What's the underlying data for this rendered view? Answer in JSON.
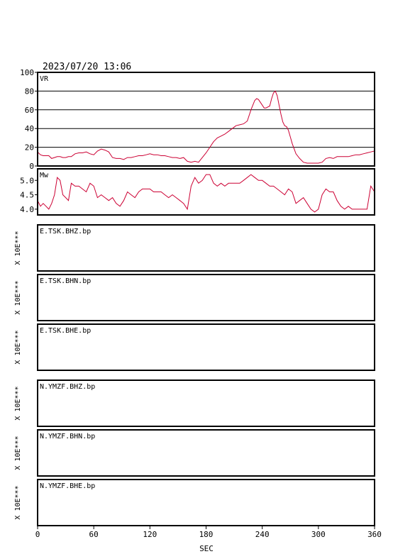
{
  "chart_data": {
    "type": "line",
    "title": "2023/07/20 13:06",
    "xlabel": "SEC",
    "xlim": [
      0,
      360
    ],
    "xticks": [
      0,
      60,
      120,
      180,
      240,
      300,
      360
    ],
    "line_color": "#cc0033",
    "panels": [
      {
        "label": "VR",
        "ylim": [
          0,
          100
        ],
        "yticks": [
          0,
          20,
          40,
          60,
          80,
          100
        ],
        "grid": true,
        "series": [
          {
            "x": [
              0,
              3,
              6,
              9,
              12,
              15,
              18,
              21,
              24,
              27,
              30,
              33,
              36,
              40,
              44,
              48,
              52,
              56,
              60,
              64,
              68,
              72,
              76,
              80,
              84,
              88,
              92,
              96,
              100,
              104,
              108,
              112,
              116,
              120,
              124,
              128,
              132,
              136,
              140,
              144,
              148,
              152,
              156,
              160,
              164,
              168,
              172,
              176,
              180,
              184,
              188,
              192,
              196,
              200,
              204,
              208,
              212,
              216,
              220,
              224,
              228,
              232,
              234,
              236,
              238,
              240,
              242,
              244,
              246,
              248,
              250,
              252,
              254,
              256,
              258,
              260,
              262,
              264,
              266,
              268,
              270,
              272,
              276,
              280,
              284,
              288,
              292,
              296,
              300,
              304,
              308,
              312,
              316,
              320,
              324,
              328,
              332,
              336,
              340,
              344,
              348,
              352,
              356,
              360
            ],
            "y": [
              15,
              12,
              11,
              11,
              11,
              8,
              9,
              10,
              10,
              9,
              9,
              10,
              10,
              13,
              14,
              14,
              15,
              13,
              12,
              16,
              18,
              17,
              15,
              9,
              8,
              8,
              7,
              9,
              9,
              10,
              11,
              11,
              12,
              13,
              12,
              12,
              11,
              11,
              10,
              9,
              9,
              8,
              9,
              5,
              4,
              5,
              4,
              9,
              14,
              20,
              26,
              30,
              32,
              34,
              37,
              40,
              43,
              44,
              45,
              48,
              60,
              70,
              72,
              71,
              68,
              65,
              62,
              62,
              63,
              64,
              72,
              78,
              80,
              75,
              65,
              55,
              47,
              43,
              42,
              38,
              31,
              24,
              13,
              8,
              4,
              3,
              3,
              3,
              3,
              4,
              8,
              9,
              8,
              10,
              10,
              10,
              10,
              11,
              12,
              12,
              13,
              14,
              15,
              16
            ]
          }
        ]
      },
      {
        "label": "Mw",
        "ylim": [
          3.8,
          5.4
        ],
        "yticks": [
          4.0,
          4.5,
          5.0
        ],
        "ytick_labels": [
          "4.0",
          "4.5",
          "5.0"
        ],
        "grid": false,
        "series": [
          {
            "x": [
              0,
              3,
              6,
              9,
              12,
              15,
              18,
              21,
              24,
              27,
              30,
              33,
              36,
              40,
              44,
              48,
              52,
              56,
              60,
              64,
              68,
              72,
              76,
              80,
              84,
              88,
              92,
              96,
              100,
              104,
              108,
              112,
              116,
              120,
              124,
              128,
              132,
              136,
              140,
              144,
              148,
              152,
              156,
              160,
              164,
              168,
              172,
              176,
              180,
              184,
              188,
              192,
              196,
              200,
              204,
              208,
              212,
              216,
              220,
              224,
              228,
              232,
              236,
              240,
              244,
              248,
              252,
              256,
              260,
              264,
              268,
              272,
              276,
              280,
              284,
              288,
              292,
              296,
              300,
              304,
              308,
              312,
              316,
              320,
              324,
              328,
              332,
              336,
              340,
              344,
              348,
              352,
              356,
              360
            ],
            "y": [
              4.3,
              4.1,
              4.2,
              4.1,
              4.0,
              4.2,
              4.5,
              5.1,
              5.0,
              4.5,
              4.4,
              4.3,
              4.9,
              4.8,
              4.8,
              4.7,
              4.6,
              4.9,
              4.8,
              4.4,
              4.5,
              4.4,
              4.3,
              4.4,
              4.2,
              4.1,
              4.3,
              4.6,
              4.5,
              4.4,
              4.6,
              4.7,
              4.7,
              4.7,
              4.6,
              4.6,
              4.6,
              4.5,
              4.4,
              4.5,
              4.4,
              4.3,
              4.2,
              4.0,
              4.8,
              5.1,
              4.9,
              5.0,
              5.2,
              5.2,
              4.9,
              4.8,
              4.9,
              4.8,
              4.9,
              4.9,
              4.9,
              4.9,
              5.0,
              5.1,
              5.2,
              5.1,
              5.0,
              5.0,
              4.9,
              4.8,
              4.8,
              4.7,
              4.6,
              4.5,
              4.7,
              4.6,
              4.2,
              4.3,
              4.4,
              4.2,
              4.0,
              3.9,
              4.0,
              4.5,
              4.7,
              4.6,
              4.6,
              4.3,
              4.1,
              4.0,
              4.1,
              4.0,
              4.0,
              4.0,
              4.0,
              4.0,
              4.8,
              4.6
            ]
          }
        ]
      },
      {
        "label": "E.TSK.BHZ.bp",
        "sidelabel": "X 10E***",
        "series": []
      },
      {
        "label": "E.TSK.BHN.bp",
        "sidelabel": "X 10E***",
        "series": []
      },
      {
        "label": "E.TSK.BHE.bp",
        "sidelabel": "X 10E***",
        "series": []
      },
      {
        "label": "N.YMZF.BHZ.bp",
        "sidelabel": "X 10E***",
        "series": []
      },
      {
        "label": "N.YMZF.BHN.bp",
        "sidelabel": "X 10E***",
        "series": []
      },
      {
        "label": "N.YMZF.BHE.bp",
        "sidelabel": "X 10E***",
        "series": []
      }
    ]
  }
}
